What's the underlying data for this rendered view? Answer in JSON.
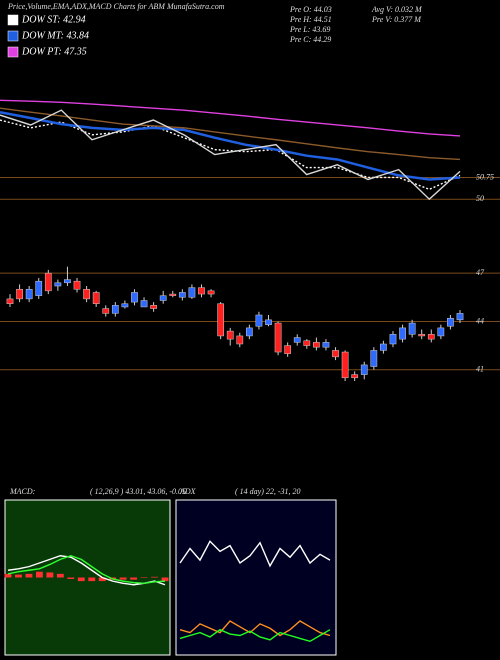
{
  "chart_data": [
    {
      "type": "line",
      "title": "Price,Volume,EMA,ADX,MACD Charts for ABM MunafaSutra.com",
      "annotations": [
        "Pre  O: 44.03",
        "Pre  H: 44.51",
        "Pre  L: 43.69",
        "Pre  C: 44.29",
        "Avg  V: 0.032  M",
        "Pre  V: 0.377  M"
      ],
      "ylim": [
        49.8,
        54.8
      ],
      "yticks": [
        50,
        50.75
      ],
      "grid": true,
      "series": [
        {
          "name": "DOW ST: 42.94",
          "color": "#ffffff",
          "dash": true,
          "values": [
            52.73,
            52.46,
            52.66,
            52.22,
            52.32,
            52.53,
            52.12,
            51.71,
            51.64,
            51.71,
            51.09,
            51.09,
            50.75,
            50.75,
            50.34,
            50.82
          ]
        },
        {
          "name": "DOW MT: 43.84",
          "color": "#1f5fe0",
          "values": [
            53.0,
            52.8,
            52.59,
            52.46,
            52.39,
            52.46,
            52.39,
            52.12,
            51.88,
            51.71,
            51.5,
            51.37,
            51.09,
            50.82,
            50.68,
            50.75
          ]
        },
        {
          "name": "DOW PT: 47.35",
          "color": "#e040e0",
          "values": [
            53.41,
            53.38,
            53.34,
            53.28,
            53.21,
            53.14,
            53.07,
            52.97,
            52.87,
            52.76,
            52.66,
            52.56,
            52.46,
            52.35,
            52.25,
            52.18
          ]
        },
        {
          "color": "#8b5a2b",
          "values": [
            53.14,
            53.0,
            52.87,
            52.73,
            52.59,
            52.53,
            52.46,
            52.32,
            52.18,
            52.05,
            51.91,
            51.77,
            51.64,
            51.54,
            51.43,
            51.37
          ]
        },
        {
          "color": "#d8d8d8",
          "values": [
            52.9,
            52.56,
            53.07,
            52.05,
            52.39,
            52.73,
            52.22,
            51.54,
            51.71,
            51.88,
            50.85,
            51.19,
            50.68,
            51.02,
            50.0,
            50.96
          ]
        }
      ]
    },
    {
      "type": "candlestick",
      "ylim": [
        38.5,
        50.3
      ],
      "yticks": [
        41,
        44,
        47
      ],
      "grid": true,
      "up_color": "#2f6bff",
      "down_color": "#ff2020",
      "open": [
        45.4,
        46.0,
        45.4,
        45.6,
        47.0,
        46.2,
        46.4,
        46.5,
        46.0,
        45.8,
        44.8,
        44.5,
        44.9,
        45.2,
        44.9,
        45.0,
        45.3,
        45.7,
        45.5,
        45.5,
        46.1,
        45.9,
        45.1,
        43.4,
        43.1,
        43.1,
        43.7,
        43.8,
        43.9,
        42.5,
        42.7,
        42.8,
        42.7,
        42.4,
        42.2,
        42.1,
        40.7,
        40.7,
        41.2,
        42.2,
        42.6,
        42.9,
        43.2,
        43.2,
        43.2,
        43.1,
        43.7,
        44.1
      ],
      "close": [
        45.1,
        45.4,
        46.0,
        46.5,
        45.9,
        46.4,
        46.6,
        46.0,
        45.4,
        45.1,
        44.5,
        45.0,
        45.1,
        45.8,
        45.3,
        44.8,
        45.6,
        45.6,
        45.8,
        46.1,
        45.7,
        45.7,
        43.1,
        42.9,
        42.6,
        43.6,
        44.4,
        44.1,
        42.1,
        42.0,
        43.0,
        42.5,
        42.4,
        42.7,
        41.8,
        40.5,
        40.5,
        41.3,
        42.2,
        42.6,
        43.2,
        43.6,
        43.9,
        43.1,
        42.9,
        43.6,
        44.2,
        44.5
      ],
      "high": [
        45.7,
        46.3,
        46.2,
        46.7,
        47.2,
        46.6,
        47.4,
        46.7,
        46.2,
        45.9,
        45.0,
        45.2,
        45.3,
        46.0,
        45.5,
        45.2,
        45.9,
        45.9,
        46.0,
        46.3,
        46.3,
        46.0,
        45.2,
        43.6,
        43.3,
        43.8,
        44.6,
        44.4,
        44.0,
        42.7,
        43.2,
        42.9,
        43.0,
        42.9,
        42.4,
        42.2,
        40.9,
        41.5,
        42.4,
        42.8,
        43.4,
        43.8,
        44.1,
        43.5,
        43.5,
        43.8,
        44.4,
        44.7
      ],
      "low": [
        44.9,
        45.2,
        45.2,
        45.4,
        45.7,
        45.9,
        46.2,
        45.8,
        45.2,
        44.9,
        44.3,
        44.3,
        44.8,
        45.0,
        45.0,
        44.6,
        45.1,
        45.5,
        45.3,
        45.4,
        45.5,
        45.5,
        42.9,
        42.5,
        42.4,
        42.9,
        43.5,
        43.7,
        41.9,
        41.8,
        42.5,
        42.3,
        42.2,
        42.2,
        41.6,
        40.3,
        40.3,
        40.4,
        41.0,
        42.0,
        42.4,
        42.7,
        43.0,
        42.9,
        42.7,
        42.9,
        43.5,
        43.9
      ]
    },
    {
      "type": "line",
      "title": "MACD:",
      "subtitle": "( 12,26,9 ) 43.01, 43.06, -0.05",
      "ylim": [
        -1,
        1
      ],
      "series": [
        {
          "color": "#ff3030",
          "kind": "bar",
          "values": [
            0.05,
            0.04,
            0.05,
            0.08,
            0.07,
            0.05,
            -0.02,
            -0.05,
            -0.05,
            -0.05,
            -0.03,
            -0.03,
            -0.03,
            0.0,
            0.01,
            -0.05
          ]
        },
        {
          "color": "#ffffff",
          "values": [
            0.1,
            0.12,
            0.15,
            0.2,
            0.25,
            0.3,
            0.28,
            0.2,
            0.1,
            0.0,
            -0.05,
            -0.08,
            -0.1,
            -0.08,
            -0.05,
            -0.1
          ]
        },
        {
          "color": "#30ff30",
          "values": [
            0.05,
            0.08,
            0.1,
            0.12,
            0.18,
            0.25,
            0.3,
            0.25,
            0.15,
            0.05,
            -0.02,
            -0.05,
            -0.07,
            -0.08,
            -0.06,
            -0.05
          ]
        }
      ]
    },
    {
      "type": "line",
      "title": "ADX",
      "subtitle": "( 14 day) 22, -31, 20",
      "ylim": [
        0,
        100
      ],
      "series": [
        {
          "color": "#ffffff",
          "values": [
            60,
            70,
            62,
            75,
            68,
            72,
            60,
            65,
            74,
            58,
            70,
            64,
            72,
            60,
            66,
            62
          ]
        },
        {
          "color": "#ff9020",
          "values": [
            14,
            12,
            18,
            15,
            12,
            20,
            16,
            12,
            18,
            15,
            10,
            14,
            20,
            16,
            12,
            10
          ]
        },
        {
          "color": "#20ff20",
          "values": [
            8,
            10,
            12,
            9,
            14,
            11,
            10,
            13,
            9,
            7,
            12,
            10,
            8,
            6,
            10,
            14
          ]
        }
      ]
    }
  ]
}
